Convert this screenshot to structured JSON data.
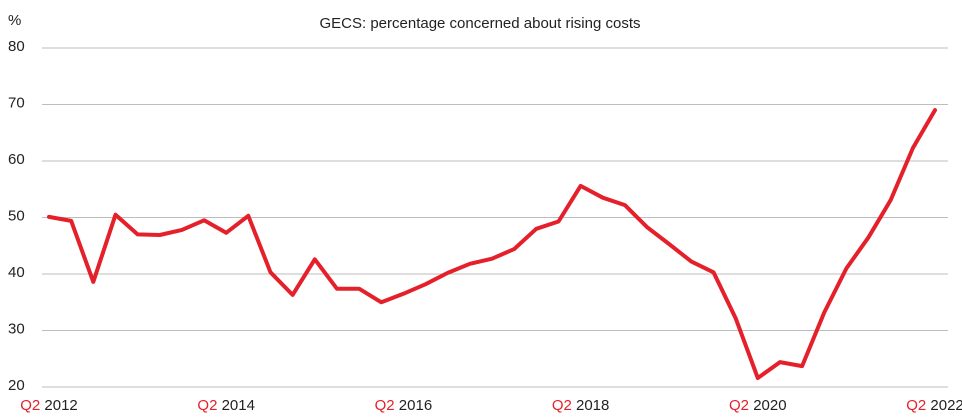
{
  "chart_data": {
    "type": "line",
    "title": "GECS: percentage concerned about rising costs",
    "y_label": "%",
    "categories": [
      "Q2 2012",
      null,
      null,
      null,
      null,
      null,
      null,
      null,
      "Q2 2014",
      null,
      null,
      null,
      null,
      null,
      null,
      null,
      "Q2 2016",
      null,
      null,
      null,
      null,
      null,
      null,
      null,
      "Q2 2018",
      null,
      null,
      null,
      null,
      null,
      null,
      null,
      "Q2 2020",
      null,
      null,
      null,
      null,
      null,
      null,
      null,
      "Q2 2022"
    ],
    "series": [
      {
        "name": "GECS: percentage concerned about rising costs",
        "color": "#e4202b",
        "values": [
          50.1,
          49.4,
          38.6,
          50.5,
          47,
          46.9,
          47.8,
          49.5,
          47.3,
          50.3,
          40.3,
          36.3,
          42.6,
          37.4,
          37.4,
          35,
          36.5,
          38.2,
          40.2,
          41.8,
          42.7,
          44.4,
          48,
          49.3,
          55.6,
          53.5,
          52.2,
          48.3,
          45.3,
          42.2,
          40.3,
          32.2,
          21.6,
          24.4,
          23.7,
          33.2,
          41,
          46.5,
          53.1,
          62.3,
          69
        ]
      }
    ],
    "ylim": [
      20,
      80
    ],
    "yticks": [
      20,
      30,
      40,
      50,
      60,
      70,
      80
    ],
    "grid": true,
    "tick_prefix_color": "#e4202b"
  }
}
